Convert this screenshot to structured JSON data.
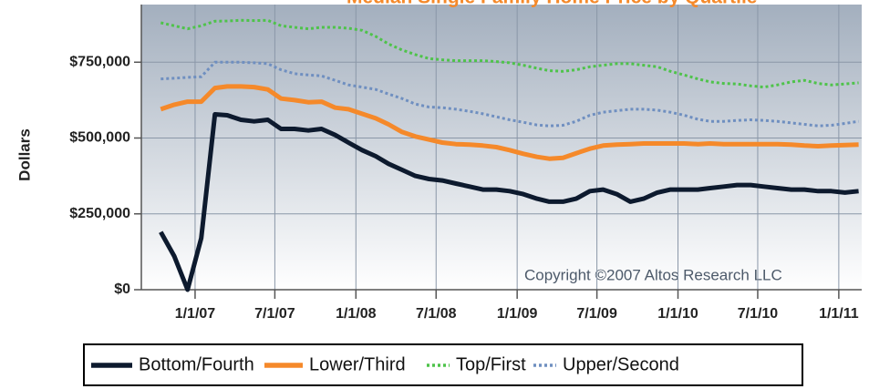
{
  "chart_data": {
    "type": "line",
    "title": "Median Single Family Home Price by Quartile",
    "ylabel": "Dollars",
    "annotation": "Copyright ©2007 Altos Research LLC",
    "grid": true,
    "legend": "bottom",
    "x": [
      "2006-10-15",
      "2006-11-15",
      "2006-12-15",
      "2007-01-15",
      "2007-02-15",
      "2007-03-15",
      "2007-04-15",
      "2007-05-15",
      "2007-06-15",
      "2007-07-15",
      "2007-08-15",
      "2007-09-15",
      "2007-10-15",
      "2007-11-15",
      "2007-12-15",
      "2008-01-15",
      "2008-02-15",
      "2008-03-15",
      "2008-04-15",
      "2008-05-15",
      "2008-06-15",
      "2008-07-15",
      "2008-08-15",
      "2008-09-15",
      "2008-10-15",
      "2008-11-15",
      "2008-12-15",
      "2009-01-15",
      "2009-02-15",
      "2009-03-15",
      "2009-04-15",
      "2009-05-15",
      "2009-06-15",
      "2009-07-15",
      "2009-08-15",
      "2009-09-15",
      "2009-10-15",
      "2009-11-15",
      "2009-12-15",
      "2010-01-15",
      "2010-02-15",
      "2010-03-15",
      "2010-04-15",
      "2010-05-15",
      "2010-06-15",
      "2010-07-15",
      "2010-08-15",
      "2010-09-15",
      "2010-10-15",
      "2010-11-15",
      "2010-12-15",
      "2011-01-15",
      "2011-02-15"
    ],
    "xlim": [
      "2006-09-01",
      "2011-02-22"
    ],
    "xticks": [
      {
        "value": "2007-01-01",
        "label": "1/1/07"
      },
      {
        "value": "2007-07-01",
        "label": "7/1/07"
      },
      {
        "value": "2008-01-01",
        "label": "1/1/08"
      },
      {
        "value": "2008-07-01",
        "label": "7/1/08"
      },
      {
        "value": "2009-01-01",
        "label": "1/1/09"
      },
      {
        "value": "2009-07-01",
        "label": "7/1/09"
      },
      {
        "value": "2010-01-01",
        "label": "1/1/10"
      },
      {
        "value": "2010-07-01",
        "label": "7/1/10"
      },
      {
        "value": "2011-01-01",
        "label": "1/1/11"
      }
    ],
    "ylim": [
      0,
      940000
    ],
    "yticks": [
      {
        "value": 0,
        "label": "$0"
      },
      {
        "value": 250000,
        "label": "$250,000"
      },
      {
        "value": 500000,
        "label": "$500,000"
      },
      {
        "value": 750000,
        "label": "$750,000"
      }
    ],
    "series": [
      {
        "name": "Bottom/Fourth",
        "color": "#0d1a2e",
        "style": "solid",
        "values": [
          190000,
          110000,
          0,
          170000,
          578000,
          575000,
          560000,
          555000,
          560000,
          530000,
          530000,
          525000,
          530000,
          510000,
          485000,
          460000,
          440000,
          415000,
          395000,
          375000,
          365000,
          360000,
          350000,
          340000,
          330000,
          330000,
          325000,
          315000,
          300000,
          290000,
          290000,
          300000,
          325000,
          330000,
          315000,
          290000,
          300000,
          320000,
          330000,
          330000,
          330000,
          335000,
          340000,
          345000,
          345000,
          340000,
          335000,
          330000,
          330000,
          325000,
          325000,
          320000,
          325000
        ]
      },
      {
        "name": "Lower/Third",
        "color": "#f5892a",
        "style": "solid",
        "values": [
          595000,
          610000,
          620000,
          620000,
          665000,
          670000,
          670000,
          668000,
          660000,
          630000,
          625000,
          618000,
          620000,
          600000,
          595000,
          580000,
          565000,
          545000,
          520000,
          505000,
          495000,
          485000,
          480000,
          478000,
          475000,
          470000,
          460000,
          448000,
          438000,
          432000,
          435000,
          450000,
          465000,
          475000,
          478000,
          480000,
          482000,
          482000,
          482000,
          482000,
          480000,
          482000,
          480000,
          480000,
          480000,
          480000,
          480000,
          478000,
          475000,
          473000,
          475000,
          477000,
          478000
        ]
      },
      {
        "name": "Top/First",
        "color": "#4ec34a",
        "style": "dotted",
        "values": [
          880000,
          870000,
          860000,
          870000,
          885000,
          886000,
          888000,
          887000,
          888000,
          870000,
          865000,
          860000,
          865000,
          865000,
          862000,
          855000,
          835000,
          810000,
          790000,
          775000,
          762000,
          758000,
          755000,
          755000,
          755000,
          752000,
          748000,
          740000,
          730000,
          722000,
          720000,
          725000,
          735000,
          740000,
          745000,
          745000,
          740000,
          735000,
          720000,
          708000,
          695000,
          685000,
          680000,
          678000,
          672000,
          668000,
          675000,
          685000,
          690000,
          680000,
          675000,
          678000,
          682000
        ]
      },
      {
        "name": "Upper/Second",
        "color": "#6f8fc0",
        "style": "dotted",
        "values": [
          695000,
          697000,
          700000,
          702000,
          750000,
          750000,
          750000,
          748000,
          745000,
          725000,
          712000,
          708000,
          705000,
          690000,
          675000,
          668000,
          660000,
          645000,
          630000,
          612000,
          602000,
          600000,
          595000,
          588000,
          580000,
          570000,
          560000,
          552000,
          543000,
          540000,
          542000,
          555000,
          575000,
          585000,
          590000,
          595000,
          595000,
          592000,
          585000,
          575000,
          562000,
          555000,
          555000,
          558000,
          560000,
          558000,
          555000,
          550000,
          545000,
          540000,
          542000,
          548000,
          555000
        ]
      }
    ]
  }
}
